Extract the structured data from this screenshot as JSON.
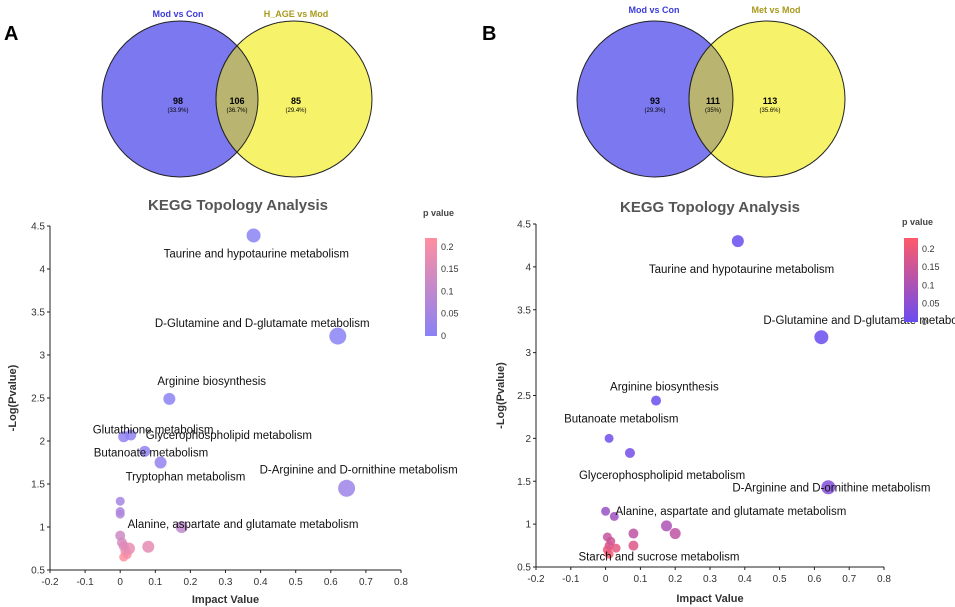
{
  "panels": [
    {
      "letter": "A",
      "venn": {
        "left_title": "Mod vs Con",
        "right_title": "H_AGE vs Mod",
        "left_color": "#7b78f0",
        "right_color": "#f6f36a",
        "overlap_color": "#b9b46f",
        "left_title_color": "#3b3bd9",
        "right_title_color": "#a89a1c",
        "left_count": "98",
        "left_pct": "(33.9%)",
        "overlap_count": "106",
        "overlap_pct": "(36.7%)",
        "right_count": "85",
        "right_pct": "(29.4%)"
      }
    },
    {
      "letter": "B",
      "venn": {
        "left_title": "Mod vs Con",
        "right_title": "Met vs Mod",
        "left_color": "#7b78f0",
        "right_color": "#f6f36a",
        "overlap_color": "#b9b46f",
        "left_title_color": "#3b3bd9",
        "right_title_color": "#a89a1c",
        "left_count": "93",
        "left_pct": "(29.3%)",
        "overlap_count": "111",
        "overlap_pct": "(35%)",
        "right_count": "113",
        "right_pct": "(35.6%)"
      }
    }
  ],
  "chart_data": [
    {
      "type": "scatter",
      "title": "KEGG Topology Analysis",
      "xlabel": "Impact Value",
      "ylabel": "-Log(Pvalue)",
      "xlim": [
        -0.2,
        0.8
      ],
      "ylim": [
        0.5,
        4.5
      ],
      "xticks": [
        "-0.2",
        "-0.1",
        "0",
        "0.1",
        "0.2",
        "0.3",
        "0.4",
        "0.5",
        "0.6",
        "0.7",
        "0.8"
      ],
      "yticks": [
        "0.5",
        "1",
        "1.5",
        "2",
        "2.5",
        "3",
        "3.5",
        "4",
        "4.5"
      ],
      "legend_title": "p value",
      "legend_ticks": [
        "0.2",
        "0.15",
        "0.1",
        "0.05",
        "0"
      ],
      "legend_range": [
        0,
        0.22
      ],
      "color_low": "#8a82f5",
      "color_high": "#ff8fa0",
      "points": [
        {
          "x": 0.38,
          "y": 4.39,
          "p": 4e-05,
          "size": 7,
          "label": "Taurine and hypotaurine metabolism"
        },
        {
          "x": 0.62,
          "y": 3.22,
          "p": 0.0006,
          "size": 8.5,
          "label": "D-Glutamine and D-glutamate metabolism"
        },
        {
          "x": 0.14,
          "y": 2.49,
          "p": 0.003,
          "size": 6,
          "label": "Arginine biosynthesis"
        },
        {
          "x": 0.03,
          "y": 2.07,
          "p": 0.0085,
          "size": 5.5,
          "label": "Glycerophospholipid metabolism"
        },
        {
          "x": 0.01,
          "y": 2.05,
          "p": 0.009,
          "size": 5.5,
          "label": "Glutathione metabolism"
        },
        {
          "x": 0.07,
          "y": 1.88,
          "p": 0.013,
          "size": 5.5,
          "label": "Butanoate metabolism"
        },
        {
          "x": 0.115,
          "y": 1.75,
          "p": 0.018,
          "size": 6,
          "label": "Tryptophan metabolism"
        },
        {
          "x": 0.645,
          "y": 1.45,
          "p": 0.035,
          "size": 8.5,
          "label": "D-Arginine and D-ornithine metabolism"
        },
        {
          "x": 0.175,
          "y": 1.0,
          "p": 0.1,
          "size": 6,
          "label": "Alanine, aspartate and glutamate metabolism"
        },
        {
          "x": 0.0,
          "y": 1.3,
          "p": 0.05,
          "size": 4.5,
          "label": ""
        },
        {
          "x": 0.0,
          "y": 1.18,
          "p": 0.066,
          "size": 4.5,
          "label": ""
        },
        {
          "x": 0.0,
          "y": 1.15,
          "p": 0.07,
          "size": 4.5,
          "label": ""
        },
        {
          "x": 0.0,
          "y": 0.9,
          "p": 0.126,
          "size": 5,
          "label": ""
        },
        {
          "x": 0.005,
          "y": 0.82,
          "p": 0.151,
          "size": 5,
          "label": ""
        },
        {
          "x": 0.01,
          "y": 0.78,
          "p": 0.166,
          "size": 5,
          "label": ""
        },
        {
          "x": 0.015,
          "y": 0.72,
          "p": 0.19,
          "size": 5,
          "label": ""
        },
        {
          "x": 0.02,
          "y": 0.68,
          "p": 0.209,
          "size": 4.5,
          "label": ""
        },
        {
          "x": 0.025,
          "y": 0.75,
          "p": 0.178,
          "size": 6,
          "label": ""
        },
        {
          "x": 0.08,
          "y": 0.77,
          "p": 0.17,
          "size": 6,
          "label": ""
        },
        {
          "x": 0.01,
          "y": 0.65,
          "p": 0.224,
          "size": 4.5,
          "label": ""
        }
      ]
    },
    {
      "type": "scatter",
      "title": "KEGG Topology Analysis",
      "xlabel": "Impact Value",
      "ylabel": "-Log(Pvalue)",
      "xlim": [
        -0.2,
        0.8
      ],
      "ylim": [
        0.5,
        4.5
      ],
      "xticks": [
        "-0.2",
        "-0.1",
        "0",
        "0.1",
        "0.2",
        "0.3",
        "0.4",
        "0.5",
        "0.6",
        "0.7",
        "0.8"
      ],
      "yticks": [
        "0.5",
        "1",
        "1.5",
        "2",
        "2.5",
        "3",
        "3.5",
        "4",
        "4.5"
      ],
      "legend_title": "p value",
      "legend_ticks": [
        "0.2",
        "0.15",
        "0.1",
        "0.05",
        "0"
      ],
      "legend_range": [
        0,
        0.23
      ],
      "color_low": "#6a4cf0",
      "color_high": "#ff5a6a",
      "points": [
        {
          "x": 0.38,
          "y": 4.3,
          "p": 5e-05,
          "size": 6,
          "label": "Taurine and hypotaurine metabolism"
        },
        {
          "x": 0.62,
          "y": 3.18,
          "p": 0.00066,
          "size": 7,
          "label": "D-Glutamine and D-glutamate metabolism"
        },
        {
          "x": 0.145,
          "y": 2.44,
          "p": 0.0036,
          "size": 5,
          "label": "Arginine biosynthesis"
        },
        {
          "x": 0.01,
          "y": 2.0,
          "p": 0.01,
          "size": 4.5,
          "label": "Butanoate metabolism"
        },
        {
          "x": 0.07,
          "y": 1.83,
          "p": 0.0148,
          "size": 5,
          "label": "Glycerophospholipid metabolism"
        },
        {
          "x": 0.64,
          "y": 1.43,
          "p": 0.037,
          "size": 7,
          "label": "D-Arginine and D-ornithine metabolism"
        },
        {
          "x": 0.175,
          "y": 0.98,
          "p": 0.105,
          "size": 5.5,
          "label": "Alanine, aspartate and glutamate metabolism"
        },
        {
          "x": 0.2,
          "y": 0.89,
          "p": 0.129,
          "size": 5.5,
          "label": ""
        },
        {
          "x": 0.08,
          "y": 0.75,
          "p": 0.178,
          "size": 5,
          "label": "Starch and sucrose metabolism"
        },
        {
          "x": 0.08,
          "y": 0.89,
          "p": 0.129,
          "size": 5,
          "label": ""
        },
        {
          "x": 0.0,
          "y": 1.15,
          "p": 0.071,
          "size": 4.5,
          "label": ""
        },
        {
          "x": 0.025,
          "y": 1.09,
          "p": 0.081,
          "size": 4.5,
          "label": ""
        },
        {
          "x": 0.005,
          "y": 0.85,
          "p": 0.141,
          "size": 4.5,
          "label": ""
        },
        {
          "x": 0.015,
          "y": 0.8,
          "p": 0.158,
          "size": 4.5,
          "label": ""
        },
        {
          "x": 0.01,
          "y": 0.75,
          "p": 0.178,
          "size": 4.5,
          "label": ""
        },
        {
          "x": 0.03,
          "y": 0.72,
          "p": 0.19,
          "size": 4.5,
          "label": ""
        },
        {
          "x": 0.005,
          "y": 0.7,
          "p": 0.2,
          "size": 4.5,
          "label": ""
        },
        {
          "x": 0.01,
          "y": 0.65,
          "p": 0.224,
          "size": 4.5,
          "label": ""
        }
      ]
    }
  ]
}
